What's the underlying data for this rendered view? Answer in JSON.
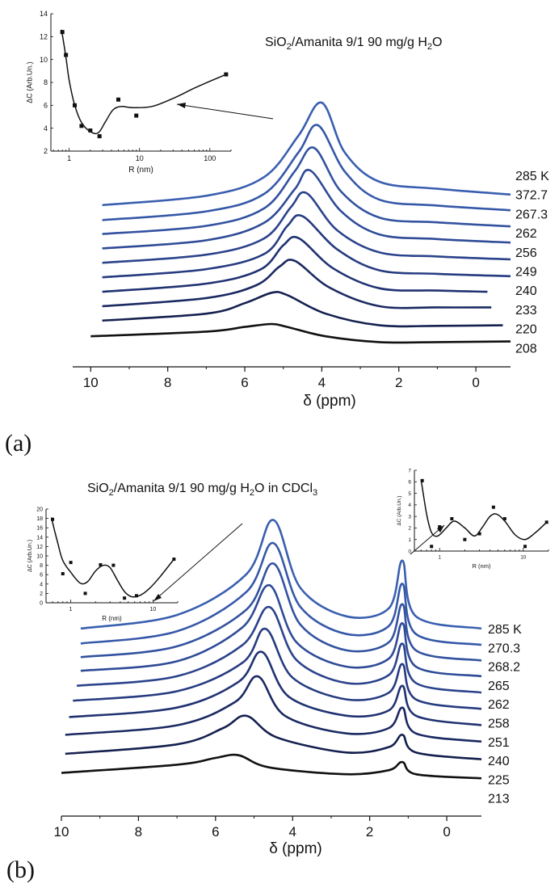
{
  "chart_data": [
    {
      "type": "line",
      "panel_label": "(a)",
      "title": "SiO2/Amanita 9/1 90 mg/g H2O",
      "xlabel": "δ (ppm)",
      "xlim": [
        10.3,
        -0.9
      ],
      "xticks": [
        10,
        8,
        6,
        4,
        2,
        0
      ],
      "series": [
        {
          "name": "285 K",
          "x": [
            9.7,
            7,
            5.5,
            4.6,
            4.0,
            3.4,
            2.5,
            1,
            -0.9
          ],
          "y": [
            60,
            76,
            108,
            180,
            236,
            150,
            100,
            88,
            78
          ]
        },
        {
          "name": "372.7",
          "x": [
            9.7,
            7,
            5.5,
            4.6,
            4.1,
            3.4,
            2.5,
            1,
            -0.9
          ],
          "y": [
            55,
            70,
            100,
            172,
            218,
            138,
            90,
            80,
            72
          ]
        },
        {
          "name": "267.3",
          "x": [
            9.7,
            7,
            5.5,
            4.7,
            4.2,
            3.5,
            2.5,
            1,
            -0.9
          ],
          "y": [
            52,
            66,
            96,
            160,
            200,
            125,
            80,
            72,
            65
          ]
        },
        {
          "name": "262",
          "x": [
            9.7,
            7,
            5.5,
            4.7,
            4.3,
            3.5,
            2.5,
            1,
            -0.9
          ],
          "y": [
            48,
            62,
            92,
            150,
            182,
            112,
            72,
            64,
            58
          ]
        },
        {
          "name": "256",
          "x": [
            9.7,
            7,
            5.5,
            4.8,
            4.4,
            3.6,
            2.5,
            1,
            -0.9
          ],
          "y": [
            44,
            58,
            86,
            140,
            164,
            100,
            62,
            55,
            50
          ]
        },
        {
          "name": "249",
          "x": [
            9.7,
            7,
            5.5,
            4.9,
            4.5,
            3.6,
            2.5,
            1,
            -0.9
          ],
          "y": [
            40,
            54,
            80,
            128,
            145,
            88,
            52,
            46,
            42
          ]
        },
        {
          "name": "240",
          "x": [
            9.7,
            7,
            5.6,
            5.0,
            4.6,
            3.7,
            2.5,
            1,
            -0.3
          ],
          "y": [
            36,
            50,
            74,
            116,
            128,
            76,
            42,
            38,
            36
          ]
        },
        {
          "name": "233",
          "x": [
            9.7,
            7,
            5.7,
            5.1,
            4.7,
            3.8,
            2.5,
            1,
            -0.4
          ],
          "y": [
            32,
            46,
            68,
            100,
            110,
            64,
            32,
            30,
            30
          ]
        },
        {
          "name": "220",
          "x": [
            9.7,
            7,
            6.0,
            5.3,
            4.9,
            3.9,
            2.5,
            1,
            -0.7
          ],
          "y": [
            28,
            40,
            58,
            76,
            72,
            40,
            20,
            19,
            20
          ]
        },
        {
          "name": "208",
          "x": [
            10.0,
            7,
            6.0,
            5.3,
            4.9,
            3.9,
            2.5,
            1,
            -0.9
          ],
          "y": [
            22,
            30,
            38,
            43,
            38,
            22,
            12,
            12,
            13
          ]
        }
      ],
      "series_colors": [
        "#3a5fb0",
        "#3658a8",
        "#3352a0",
        "#2f4b97",
        "#2b438c",
        "#263b80",
        "#203272",
        "#1a2962",
        "#14204e",
        "#111111"
      ],
      "inset": {
        "ylabel": "ΔC (Arb.Un.)",
        "xlabel": "R (nm)",
        "xscale": "log",
        "ylim": [
          2,
          14
        ],
        "yticks": [
          2,
          4,
          6,
          8,
          10,
          12,
          14
        ],
        "xticks": [
          "1",
          "10",
          "100"
        ],
        "points": [
          [
            0.8,
            12.4
          ],
          [
            0.9,
            10.4
          ],
          [
            1.2,
            6.0
          ],
          [
            1.5,
            4.2
          ],
          [
            2.0,
            3.8
          ],
          [
            2.7,
            3.3
          ],
          [
            5.0,
            6.5
          ],
          [
            9.0,
            5.1
          ],
          [
            170,
            8.7
          ]
        ],
        "fit": [
          [
            0.78,
            12.6
          ],
          [
            0.9,
            10.2
          ],
          [
            1.0,
            8.2
          ],
          [
            1.2,
            6.0
          ],
          [
            1.5,
            4.5
          ],
          [
            2.0,
            3.7
          ],
          [
            2.6,
            3.6
          ],
          [
            3.3,
            4.6
          ],
          [
            4.2,
            5.6
          ],
          [
            5.5,
            5.9
          ],
          [
            8,
            5.8
          ],
          [
            15,
            5.9
          ],
          [
            30,
            6.6
          ],
          [
            60,
            7.5
          ],
          [
            100,
            8.1
          ],
          [
            170,
            8.7
          ]
        ]
      }
    },
    {
      "type": "line",
      "panel_label": "(b)",
      "title": "SiO2/Amanita 9/1 90 mg/g H2O in CDCl3",
      "xlabel": "δ (ppm)",
      "xlim": [
        10.0,
        -0.9
      ],
      "xticks": [
        10,
        8,
        6,
        4,
        2,
        0
      ],
      "series": [
        {
          "name": "285 K",
          "x": [
            9.5,
            7,
            5.2,
            4.5,
            3.8,
            2.6,
            1.5,
            1.15,
            0.8,
            -0.9
          ],
          "y": [
            90,
            110,
            170,
            250,
            150,
            108,
            120,
            190,
            108,
            90
          ]
        },
        {
          "name": "270.3",
          "x": [
            9.5,
            7,
            5.2,
            4.5,
            3.8,
            2.6,
            1.5,
            1.15,
            0.8,
            -0.9
          ],
          "y": [
            84,
            102,
            160,
            232,
            138,
            98,
            110,
            172,
            98,
            82
          ]
        },
        {
          "name": "268.2",
          "x": [
            9.5,
            7,
            5.2,
            4.5,
            3.8,
            2.6,
            1.5,
            1.15,
            0.8,
            -0.9
          ],
          "y": [
            80,
            96,
            150,
            218,
            128,
            90,
            102,
            158,
            90,
            75
          ]
        },
        {
          "name": "265",
          "x": [
            9.5,
            7,
            5.3,
            4.6,
            3.9,
            2.6,
            1.5,
            1.15,
            0.8,
            -0.9
          ],
          "y": [
            76,
            90,
            140,
            202,
            118,
            82,
            94,
            146,
            82,
            68
          ]
        },
        {
          "name": "262",
          "x": [
            9.6,
            7,
            5.3,
            4.6,
            3.9,
            2.6,
            1.5,
            1.15,
            0.8,
            -0.9
          ],
          "y": [
            70,
            84,
            130,
            186,
            108,
            74,
            86,
            132,
            74,
            60
          ]
        },
        {
          "name": "258",
          "x": [
            9.7,
            7,
            5.3,
            4.7,
            4.0,
            2.6,
            1.5,
            1.15,
            0.8,
            -0.9
          ],
          "y": [
            64,
            78,
            120,
            170,
            98,
            66,
            76,
            118,
            66,
            52
          ]
        },
        {
          "name": "251",
          "x": [
            9.8,
            7,
            5.4,
            4.8,
            4.1,
            2.6,
            1.5,
            1.15,
            0.8,
            -0.9
          ],
          "y": [
            56,
            70,
            108,
            152,
            86,
            58,
            66,
            102,
            58,
            44
          ]
        },
        {
          "name": "240",
          "x": [
            9.9,
            7,
            5.5,
            4.9,
            4.2,
            2.6,
            1.5,
            1.15,
            0.8,
            -0.9
          ],
          "y": [
            46,
            60,
            94,
            132,
            74,
            48,
            56,
            86,
            48,
            36
          ]
        },
        {
          "name": "225",
          "x": [
            9.9,
            7,
            5.8,
            5.2,
            4.4,
            2.6,
            1.5,
            1.15,
            0.8,
            -0.9
          ],
          "y": [
            34,
            48,
            72,
            90,
            58,
            36,
            44,
            62,
            36,
            26
          ]
        },
        {
          "name": "213",
          "x": [
            10.0,
            7,
            6.0,
            5.4,
            4.6,
            2.6,
            1.5,
            1.15,
            0.8,
            -0.9
          ],
          "y": [
            22,
            34,
            44,
            48,
            30,
            20,
            26,
            38,
            20,
            14
          ]
        }
      ],
      "series_colors": [
        "#3a5fb0",
        "#3658a8",
        "#3352a0",
        "#2f4b97",
        "#2b438c",
        "#263b80",
        "#203272",
        "#1a2962",
        "#14204e",
        "#111111"
      ],
      "inset_left": {
        "ylabel": "ΔC (Arb.Un.)",
        "xlabel": "R (nm)",
        "xscale": "log",
        "ylim": [
          0,
          20
        ],
        "yticks": [
          0,
          2,
          4,
          6,
          8,
          10,
          12,
          14,
          16,
          18,
          20
        ],
        "xticks": [
          "1",
          "10"
        ],
        "points": [
          [
            0.6,
            17.8
          ],
          [
            0.8,
            6.2
          ],
          [
            1.0,
            8.6
          ],
          [
            1.5,
            2.0
          ],
          [
            2.3,
            8.1
          ],
          [
            3.3,
            8.0
          ],
          [
            4.5,
            1.0
          ],
          [
            6.3,
            1.5
          ],
          [
            18,
            9.3
          ]
        ],
        "fit": [
          [
            0.58,
            18.2
          ],
          [
            0.7,
            12.5
          ],
          [
            0.8,
            9.0
          ],
          [
            1.0,
            6.5
          ],
          [
            1.3,
            4.2
          ],
          [
            1.6,
            4.5
          ],
          [
            2.0,
            6.8
          ],
          [
            2.5,
            8.0
          ],
          [
            3.0,
            7.5
          ],
          [
            3.7,
            4.8
          ],
          [
            4.5,
            2.4
          ],
          [
            5.5,
            1.3
          ],
          [
            7,
            1.6
          ],
          [
            9,
            3.0
          ],
          [
            12,
            5.4
          ],
          [
            18,
            9.3
          ]
        ]
      },
      "inset_right": {
        "ylabel": "ΔC (Arb.Un.)",
        "xlabel": "R (nm)",
        "xscale": "log",
        "ylim": [
          0,
          7
        ],
        "yticks": [
          0,
          1,
          2,
          3,
          4,
          5,
          6,
          7
        ],
        "xticks": [
          "1",
          "10"
        ],
        "points": [
          [
            0.62,
            6.1
          ],
          [
            0.8,
            0.4
          ],
          [
            1.0,
            2.1
          ],
          [
            1.4,
            2.8
          ],
          [
            2.0,
            1.0
          ],
          [
            3.0,
            1.5
          ],
          [
            4.4,
            3.8
          ],
          [
            6.0,
            2.8
          ],
          [
            10.5,
            0.4
          ],
          [
            19,
            2.5
          ]
        ],
        "fit": [
          [
            0.6,
            6.2
          ],
          [
            0.7,
            3.2
          ],
          [
            0.8,
            1.6
          ],
          [
            0.95,
            1.3
          ],
          [
            1.2,
            2.0
          ],
          [
            1.5,
            2.6
          ],
          [
            2.0,
            2.0
          ],
          [
            2.6,
            1.3
          ],
          [
            3.2,
            2.0
          ],
          [
            4.0,
            3.0
          ],
          [
            4.8,
            3.2
          ],
          [
            6.0,
            2.6
          ],
          [
            8.0,
            1.4
          ],
          [
            10.5,
            1.0
          ],
          [
            14,
            1.6
          ],
          [
            19,
            2.5
          ]
        ]
      }
    }
  ]
}
